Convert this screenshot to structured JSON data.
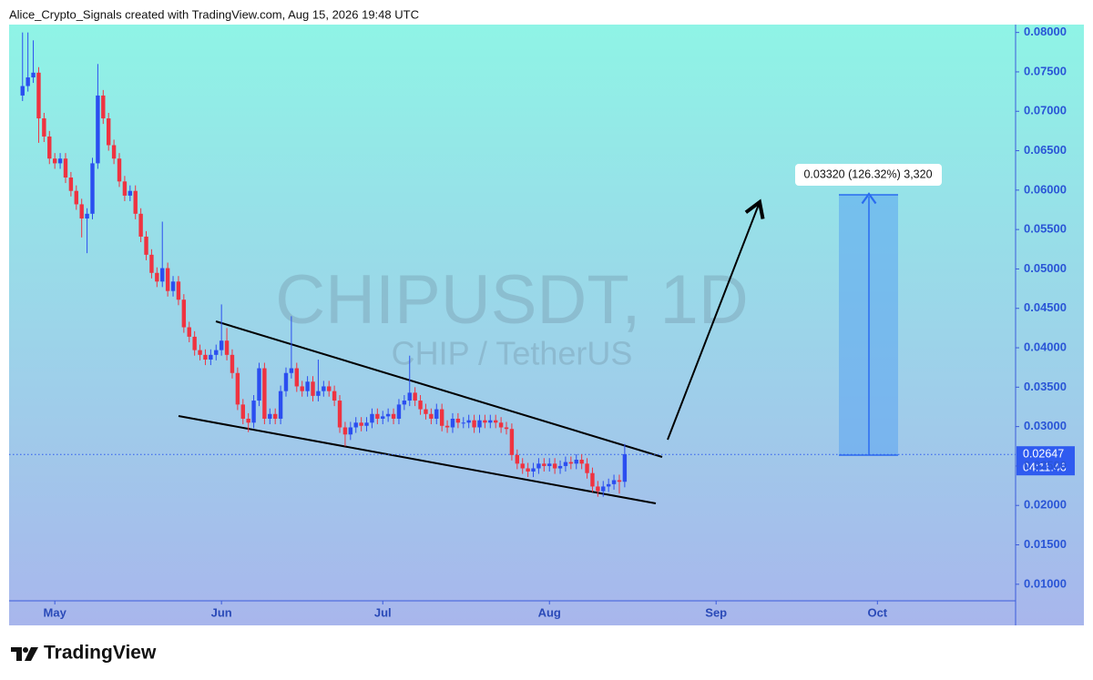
{
  "chart_data": {
    "type": "candlestick",
    "header": "Alice_Crypto_Signals created with TradingView.com, Aug 15, 2026 19:48 UTC",
    "watermark_title": "CHIPUSDT, 1D",
    "watermark_subtitle": "CHIP / TetherUS",
    "brand": "TradingView",
    "measure_label": "0.03320 (126.32%) 3,320",
    "current_price": {
      "value": 0.02647,
      "label": "0.02647"
    },
    "countdown": "04:11:46",
    "up_color": "#2b4ef0",
    "down_color": "#ef3340",
    "xlim": [
      -2.5,
      184.7
    ],
    "xticks": [
      {
        "value": 6,
        "label": "May"
      },
      {
        "value": 37,
        "label": "Jun"
      },
      {
        "value": 67,
        "label": "Jul"
      },
      {
        "value": 98,
        "label": "Aug"
      },
      {
        "value": 129,
        "label": "Sep"
      },
      {
        "value": 159,
        "label": "Oct"
      }
    ],
    "ylim": [
      0.0079,
      0.081
    ],
    "yticks": [
      {
        "value": 0.08,
        "label": "0.08000"
      },
      {
        "value": 0.075,
        "label": "0.07500"
      },
      {
        "value": 0.07,
        "label": "0.07000"
      },
      {
        "value": 0.065,
        "label": "0.06500"
      },
      {
        "value": 0.06,
        "label": "0.06000"
      },
      {
        "value": 0.055,
        "label": "0.05500"
      },
      {
        "value": 0.05,
        "label": "0.05000"
      },
      {
        "value": 0.045,
        "label": "0.04500"
      },
      {
        "value": 0.04,
        "label": "0.04000"
      },
      {
        "value": 0.035,
        "label": "0.03500"
      },
      {
        "value": 0.03,
        "label": "0.03000"
      },
      {
        "value": 0.025,
        "label": "0.02500"
      },
      {
        "value": 0.02,
        "label": "0.02000"
      },
      {
        "value": 0.015,
        "label": "0.01500"
      },
      {
        "value": 0.01,
        "label": "0.01000"
      }
    ],
    "open": [
      0.072,
      0.0732,
      0.0743,
      0.0749,
      0.0691,
      0.0668,
      0.064,
      0.0634,
      0.064,
      0.0616,
      0.0599,
      0.0582,
      0.0564,
      0.057,
      0.0634,
      0.072,
      0.0691,
      0.0657,
      0.064,
      0.0611,
      0.0593,
      0.0599,
      0.057,
      0.0541,
      0.0518,
      0.0495,
      0.0484,
      0.0501,
      0.0472,
      0.0484,
      0.0461,
      0.0426,
      0.0414,
      0.0397,
      0.0391,
      0.0385,
      0.0391,
      0.0397,
      0.0409,
      0.0391,
      0.0368,
      0.0328,
      0.031,
      0.0305,
      0.0333,
      0.0374,
      0.031,
      0.0316,
      0.031,
      0.0345,
      0.0368,
      0.0374,
      0.0351,
      0.0345,
      0.0357,
      0.0339,
      0.0345,
      0.0351,
      0.0345,
      0.0333,
      0.0299,
      0.029,
      0.0299,
      0.0305,
      0.0301,
      0.0305,
      0.0316,
      0.031,
      0.0313,
      0.0316,
      0.031,
      0.0328,
      0.0333,
      0.0343,
      0.0333,
      0.0322,
      0.0316,
      0.031,
      0.0322,
      0.0301,
      0.0299,
      0.031,
      0.0305,
      0.0305,
      0.0308,
      0.0299,
      0.0308,
      0.0305,
      0.0308,
      0.0305,
      0.0299,
      0.0297,
      0.0264,
      0.0253,
      0.0247,
      0.0243,
      0.0247,
      0.0253,
      0.025,
      0.0253,
      0.0247,
      0.025,
      0.0255,
      0.0253,
      0.0258,
      0.0253,
      0.0241,
      0.0224,
      0.0218,
      0.0224,
      0.0227,
      0.0232,
      0.023
    ],
    "high": [
      0.08,
      0.08,
      0.079,
      0.0756,
      0.0698,
      0.0675,
      0.0647,
      0.0647,
      0.0647,
      0.0623,
      0.0606,
      0.0589,
      0.0577,
      0.0641,
      0.076,
      0.0727,
      0.0698,
      0.0664,
      0.0647,
      0.0618,
      0.0606,
      0.0606,
      0.0577,
      0.0548,
      0.0525,
      0.0502,
      0.056,
      0.0508,
      0.0491,
      0.0491,
      0.0468,
      0.0433,
      0.0421,
      0.0404,
      0.0398,
      0.0398,
      0.0404,
      0.0455,
      0.0425,
      0.0398,
      0.0375,
      0.0335,
      0.0317,
      0.034,
      0.0381,
      0.0381,
      0.0323,
      0.0323,
      0.0352,
      0.0375,
      0.044,
      0.0381,
      0.0358,
      0.0364,
      0.0364,
      0.0385,
      0.0358,
      0.0358,
      0.0352,
      0.034,
      0.0306,
      0.0306,
      0.0312,
      0.0312,
      0.0312,
      0.0323,
      0.0323,
      0.032,
      0.0323,
      0.0323,
      0.0335,
      0.034,
      0.039,
      0.035,
      0.034,
      0.0329,
      0.0323,
      0.0329,
      0.0329,
      0.0308,
      0.0317,
      0.0317,
      0.0312,
      0.0315,
      0.0315,
      0.0315,
      0.0315,
      0.0315,
      0.0315,
      0.0312,
      0.0306,
      0.0304,
      0.0271,
      0.026,
      0.0254,
      0.0254,
      0.026,
      0.026,
      0.026,
      0.026,
      0.0257,
      0.0262,
      0.0262,
      0.0265,
      0.0265,
      0.026,
      0.0248,
      0.0231,
      0.0231,
      0.0234,
      0.0239,
      0.0239,
      0.0278
    ],
    "low": [
      0.0713,
      0.0725,
      0.0736,
      0.066,
      0.0661,
      0.0633,
      0.0627,
      0.0627,
      0.0609,
      0.0592,
      0.0575,
      0.054,
      0.052,
      0.0563,
      0.0627,
      0.0684,
      0.065,
      0.0633,
      0.0604,
      0.0586,
      0.0586,
      0.0563,
      0.0534,
      0.0511,
      0.0488,
      0.0477,
      0.0477,
      0.0465,
      0.0465,
      0.0454,
      0.0419,
      0.0407,
      0.039,
      0.0384,
      0.0378,
      0.0378,
      0.0384,
      0.039,
      0.0384,
      0.0361,
      0.0321,
      0.0303,
      0.0293,
      0.0298,
      0.0326,
      0.0303,
      0.0303,
      0.0303,
      0.0303,
      0.0338,
      0.0361,
      0.0344,
      0.0338,
      0.0338,
      0.0332,
      0.0332,
      0.0338,
      0.0338,
      0.0326,
      0.0292,
      0.0275,
      0.0283,
      0.0292,
      0.0294,
      0.0294,
      0.0298,
      0.0303,
      0.0303,
      0.0306,
      0.0303,
      0.0303,
      0.0321,
      0.0326,
      0.0326,
      0.0315,
      0.0309,
      0.0303,
      0.0303,
      0.0294,
      0.0292,
      0.0292,
      0.0298,
      0.0298,
      0.0298,
      0.0292,
      0.0292,
      0.0298,
      0.0298,
      0.0298,
      0.0292,
      0.029,
      0.0257,
      0.0246,
      0.024,
      0.0236,
      0.0236,
      0.024,
      0.0243,
      0.0243,
      0.024,
      0.024,
      0.0243,
      0.0246,
      0.0246,
      0.0246,
      0.0234,
      0.0217,
      0.0211,
      0.0211,
      0.0217,
      0.022,
      0.0215,
      0.0223
    ],
    "close": [
      0.0732,
      0.0743,
      0.0749,
      0.0691,
      0.0668,
      0.064,
      0.0634,
      0.064,
      0.0616,
      0.0599,
      0.0582,
      0.0564,
      0.057,
      0.0634,
      0.072,
      0.0691,
      0.0657,
      0.064,
      0.0611,
      0.0593,
      0.0599,
      0.057,
      0.0541,
      0.0518,
      0.0495,
      0.0484,
      0.0501,
      0.0472,
      0.0484,
      0.0461,
      0.0426,
      0.0414,
      0.0397,
      0.0391,
      0.0385,
      0.0391,
      0.0397,
      0.0409,
      0.0391,
      0.0368,
      0.0328,
      0.031,
      0.0305,
      0.0333,
      0.0374,
      0.031,
      0.0316,
      0.031,
      0.0345,
      0.0368,
      0.0374,
      0.0351,
      0.0345,
      0.0357,
      0.0339,
      0.0345,
      0.0351,
      0.0345,
      0.0333,
      0.0299,
      0.029,
      0.0299,
      0.0305,
      0.0301,
      0.0305,
      0.0316,
      0.031,
      0.0313,
      0.0316,
      0.031,
      0.0328,
      0.0333,
      0.0343,
      0.0333,
      0.0322,
      0.0316,
      0.031,
      0.0322,
      0.0301,
      0.0299,
      0.031,
      0.0305,
      0.0305,
      0.0308,
      0.0299,
      0.0308,
      0.0305,
      0.0308,
      0.0305,
      0.0299,
      0.0297,
      0.0264,
      0.0253,
      0.0247,
      0.0243,
      0.0247,
      0.0253,
      0.025,
      0.0253,
      0.0247,
      0.025,
      0.0255,
      0.0253,
      0.0258,
      0.0253,
      0.0241,
      0.0224,
      0.0218,
      0.0224,
      0.0227,
      0.0232,
      0.023,
      0.0265
    ]
  }
}
